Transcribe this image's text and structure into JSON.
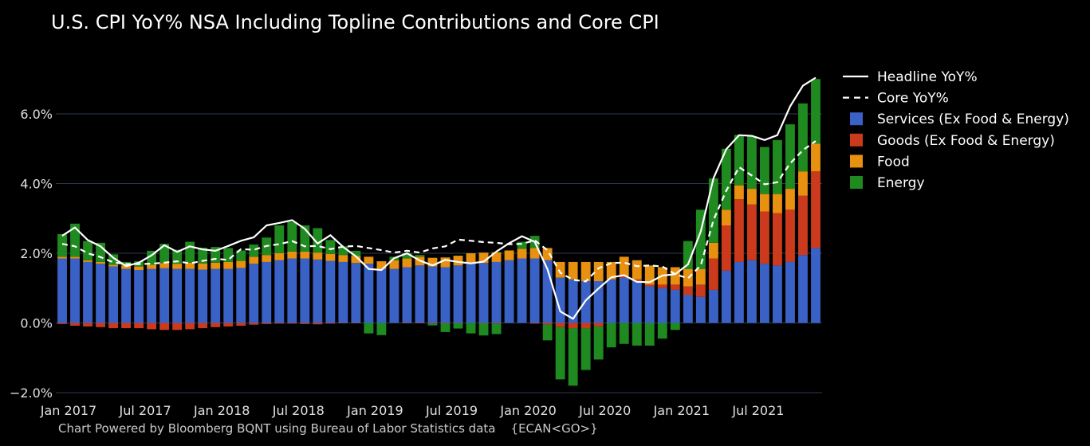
{
  "title": "U.S. CPI YoY% NSA Including Topline Contributions and Core CPI",
  "footer": "Chart Powered by Bloomberg BQNT using Bureau of Labor Statistics data    {ECAN<GO>}",
  "colors": {
    "background": "#000000",
    "grid": "#2f3b52",
    "services": "#3a62c6",
    "goods": "#cc3a1d",
    "food": "#e8900f",
    "energy": "#1f8a1f",
    "headline": "#ffffff",
    "core": "#ffffff"
  },
  "chart_data": {
    "type": "bar",
    "stacked": true,
    "x_unit": "month",
    "x": [
      "2017-01",
      "2017-02",
      "2017-03",
      "2017-04",
      "2017-05",
      "2017-06",
      "2017-07",
      "2017-08",
      "2017-09",
      "2017-10",
      "2017-11",
      "2017-12",
      "2018-01",
      "2018-02",
      "2018-03",
      "2018-04",
      "2018-05",
      "2018-06",
      "2018-07",
      "2018-08",
      "2018-09",
      "2018-10",
      "2018-11",
      "2018-12",
      "2019-01",
      "2019-02",
      "2019-03",
      "2019-04",
      "2019-05",
      "2019-06",
      "2019-07",
      "2019-08",
      "2019-09",
      "2019-10",
      "2019-11",
      "2019-12",
      "2020-01",
      "2020-02",
      "2020-03",
      "2020-04",
      "2020-05",
      "2020-06",
      "2020-07",
      "2020-08",
      "2020-09",
      "2020-10",
      "2020-11",
      "2020-12",
      "2021-01",
      "2021-02",
      "2021-03",
      "2021-04",
      "2021-05",
      "2021-06",
      "2021-07",
      "2021-08",
      "2021-09",
      "2021-10",
      "2021-11",
      "2021-12"
    ],
    "x_tick_labels": [
      {
        "x": "2017-01",
        "label": "Jan 2017"
      },
      {
        "x": "2017-07",
        "label": "Jul 2017"
      },
      {
        "x": "2018-01",
        "label": "Jan 2018"
      },
      {
        "x": "2018-07",
        "label": "Jul 2018"
      },
      {
        "x": "2019-01",
        "label": "Jan 2019"
      },
      {
        "x": "2019-07",
        "label": "Jul 2019"
      },
      {
        "x": "2020-01",
        "label": "Jan 2020"
      },
      {
        "x": "2020-07",
        "label": "Jul 2020"
      },
      {
        "x": "2021-01",
        "label": "Jan 2021"
      },
      {
        "x": "2021-07",
        "label": "Jul 2021"
      }
    ],
    "y_ticks": [
      {
        "value": -2,
        "label": "−2.0%"
      },
      {
        "value": 0,
        "label": "0.0%"
      },
      {
        "value": 2,
        "label": "2.0%"
      },
      {
        "value": 4,
        "label": "4.0%"
      },
      {
        "value": 6,
        "label": "6.0%"
      }
    ],
    "ylim": [
      -2,
      7.3
    ],
    "grid": "horizontal",
    "legend_position": "top-right",
    "series": [
      {
        "name": "Services (Ex Food & Energy)",
        "kind": "bar",
        "values": [
          1.85,
          1.85,
          1.75,
          1.7,
          1.62,
          1.55,
          1.52,
          1.55,
          1.57,
          1.55,
          1.55,
          1.53,
          1.55,
          1.55,
          1.58,
          1.7,
          1.75,
          1.8,
          1.85,
          1.85,
          1.82,
          1.78,
          1.75,
          1.72,
          1.7,
          1.55,
          1.55,
          1.6,
          1.65,
          1.62,
          1.6,
          1.65,
          1.7,
          1.72,
          1.75,
          1.8,
          1.85,
          1.85,
          1.8,
          1.3,
          1.25,
          1.2,
          1.2,
          1.25,
          1.3,
          1.2,
          1.05,
          1.0,
          0.95,
          0.8,
          0.75,
          0.95,
          1.5,
          1.75,
          1.8,
          1.7,
          1.65,
          1.75,
          1.95,
          2.15
        ]
      },
      {
        "name": "Goods (Ex Food & Energy)",
        "kind": "bar",
        "values": [
          -0.03,
          -0.08,
          -0.1,
          -0.12,
          -0.15,
          -0.15,
          -0.15,
          -0.18,
          -0.2,
          -0.2,
          -0.18,
          -0.15,
          -0.12,
          -0.1,
          -0.08,
          -0.05,
          -0.03,
          -0.02,
          -0.02,
          -0.03,
          -0.04,
          -0.02,
          -0.01,
          -0.01,
          0.0,
          0.0,
          0.0,
          -0.01,
          -0.01,
          -0.02,
          -0.01,
          -0.01,
          0.0,
          -0.01,
          -0.02,
          0.0,
          0.0,
          -0.02,
          -0.05,
          -0.12,
          -0.15,
          -0.15,
          -0.1,
          0.0,
          0.05,
          0.05,
          0.05,
          0.1,
          0.15,
          0.25,
          0.35,
          0.9,
          1.3,
          1.8,
          1.6,
          1.5,
          1.5,
          1.5,
          1.7,
          2.2
        ]
      },
      {
        "name": "Food",
        "kind": "bar",
        "values": [
          0.05,
          0.05,
          0.05,
          0.05,
          0.05,
          0.1,
          0.1,
          0.12,
          0.15,
          0.15,
          0.18,
          0.18,
          0.18,
          0.2,
          0.2,
          0.2,
          0.2,
          0.2,
          0.2,
          0.2,
          0.2,
          0.2,
          0.2,
          0.2,
          0.2,
          0.22,
          0.25,
          0.25,
          0.25,
          0.25,
          0.28,
          0.28,
          0.3,
          0.3,
          0.28,
          0.28,
          0.28,
          0.3,
          0.35,
          0.45,
          0.5,
          0.55,
          0.55,
          0.5,
          0.55,
          0.55,
          0.55,
          0.5,
          0.5,
          0.5,
          0.45,
          0.45,
          0.45,
          0.4,
          0.45,
          0.5,
          0.55,
          0.6,
          0.7,
          0.8
        ]
      },
      {
        "name": "Energy",
        "kind": "bar",
        "values": [
          0.65,
          0.95,
          0.55,
          0.55,
          0.3,
          0.1,
          0.15,
          0.4,
          0.55,
          0.4,
          0.6,
          0.45,
          0.45,
          0.4,
          0.3,
          0.35,
          0.5,
          0.8,
          0.85,
          0.75,
          0.7,
          0.4,
          0.25,
          0.15,
          -0.3,
          -0.35,
          0.1,
          0.15,
          0.05,
          -0.05,
          -0.25,
          -0.15,
          -0.3,
          -0.35,
          -0.3,
          0.0,
          0.2,
          0.35,
          -0.45,
          -1.5,
          -1.65,
          -1.2,
          -0.95,
          -0.7,
          -0.6,
          -0.65,
          -0.65,
          -0.45,
          -0.2,
          0.8,
          1.7,
          1.85,
          1.75,
          1.45,
          1.5,
          1.35,
          1.55,
          1.85,
          1.95,
          1.85
        ]
      },
      {
        "name": "Headline YoY%",
        "kind": "line",
        "style": "solid",
        "values": [
          2.5,
          2.74,
          2.38,
          2.2,
          1.87,
          1.63,
          1.73,
          1.94,
          2.23,
          2.04,
          2.2,
          2.11,
          2.07,
          2.21,
          2.36,
          2.46,
          2.8,
          2.87,
          2.95,
          2.7,
          2.28,
          2.52,
          2.18,
          1.91,
          1.55,
          1.52,
          1.86,
          2.0,
          1.79,
          1.65,
          1.81,
          1.75,
          1.71,
          1.76,
          2.05,
          2.29,
          2.49,
          2.33,
          1.54,
          0.33,
          0.12,
          0.65,
          0.99,
          1.31,
          1.37,
          1.18,
          1.17,
          1.36,
          1.4,
          1.68,
          2.62,
          4.16,
          4.99,
          5.39,
          5.37,
          5.25,
          5.39,
          6.22,
          6.81,
          7.04
        ]
      },
      {
        "name": "Core YoY%",
        "kind": "line",
        "style": "dashed",
        "values": [
          2.27,
          2.2,
          2.0,
          1.89,
          1.74,
          1.69,
          1.69,
          1.7,
          1.73,
          1.77,
          1.71,
          1.78,
          1.84,
          1.81,
          2.12,
          2.1,
          2.21,
          2.26,
          2.35,
          2.2,
          2.21,
          2.12,
          2.19,
          2.21,
          2.15,
          2.09,
          2.02,
          2.07,
          2.02,
          2.14,
          2.2,
          2.39,
          2.36,
          2.32,
          2.3,
          2.26,
          2.27,
          2.37,
          2.09,
          1.44,
          1.24,
          1.19,
          1.57,
          1.72,
          1.73,
          1.63,
          1.65,
          1.62,
          1.4,
          1.28,
          1.65,
          2.96,
          3.8,
          4.47,
          4.23,
          3.98,
          4.04,
          4.58,
          4.96,
          5.22
        ]
      }
    ]
  }
}
